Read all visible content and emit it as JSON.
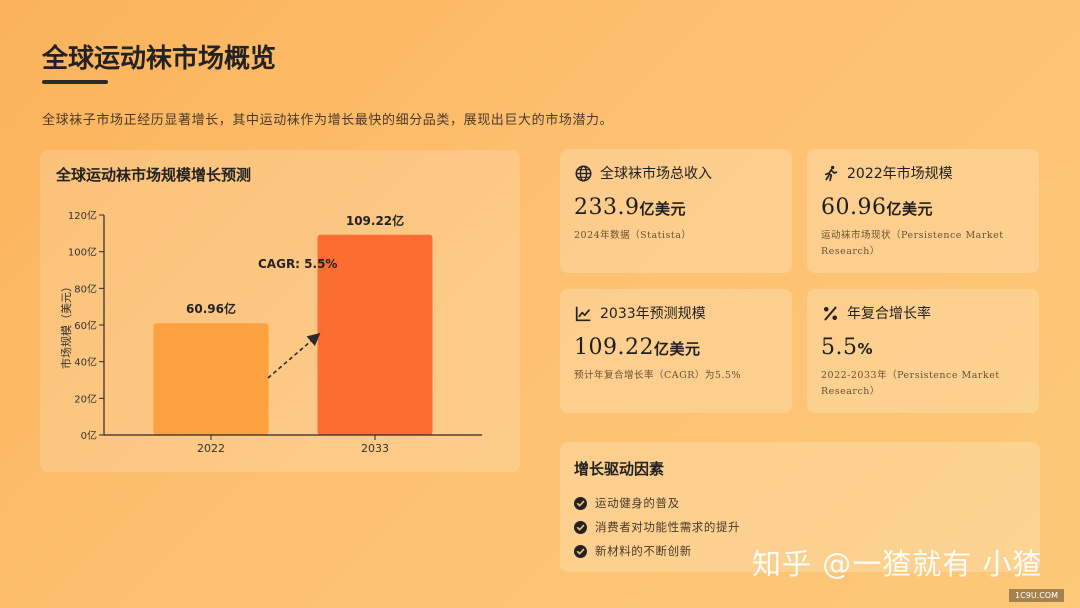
{
  "page": {
    "title": "全球运动袜市场概览",
    "intro": "全球袜子市场正经历显著增长，其中运动袜作为增长最快的细分品类，展现出巨大的市场潜力。"
  },
  "chart_data": {
    "type": "bar",
    "title": "全球运动袜市场规模增长预测",
    "categories": [
      "2022",
      "2033"
    ],
    "values": [
      60.96,
      109.22
    ],
    "data_labels": [
      "60.96亿",
      "109.22亿"
    ],
    "bar_colors": [
      "#fba140",
      "#fd6c33"
    ],
    "xlabel": "",
    "ylabel": "市场规模（美元）",
    "ylim": [
      0,
      120
    ],
    "yticks": [
      0,
      20,
      40,
      60,
      80,
      100,
      120
    ],
    "ytick_labels": [
      "0亿",
      "20亿",
      "40亿",
      "60亿",
      "80亿",
      "100亿",
      "120亿"
    ],
    "annotation": "CAGR: 5.5%",
    "grid": false,
    "legend": "none"
  },
  "stats": [
    {
      "icon": "globe-icon",
      "label": "全球袜市场总收入",
      "value": "233.9",
      "unit": "亿美元",
      "note": "2024年数据（Statista）"
    },
    {
      "icon": "running-icon",
      "label": "2022年市场规模",
      "value": "60.96",
      "unit": "亿美元",
      "note": "运动袜市场现状（Persistence Market Research）"
    },
    {
      "icon": "line-chart-icon",
      "label": "2033年预测规模",
      "value": "109.22",
      "unit": "亿美元",
      "note": "预计年复合增长率（CAGR）为5.5%"
    },
    {
      "icon": "percent-icon",
      "label": "年复合增长率",
      "value": "5.5",
      "unit": "%",
      "note": "2022-2033年（Persistence Market Research）"
    }
  ],
  "drivers": {
    "title": "增长驱动因素",
    "items": [
      "运动健身的普及",
      "消费者对功能性需求的提升",
      "新材料的不断创新"
    ]
  },
  "watermark": "知乎 @一猹就有 小猹",
  "site_tag": "1C9U.COM",
  "colors": {
    "bar_2022": "#fba140",
    "bar_2033": "#fd6c33",
    "text_dark": "#222222"
  }
}
